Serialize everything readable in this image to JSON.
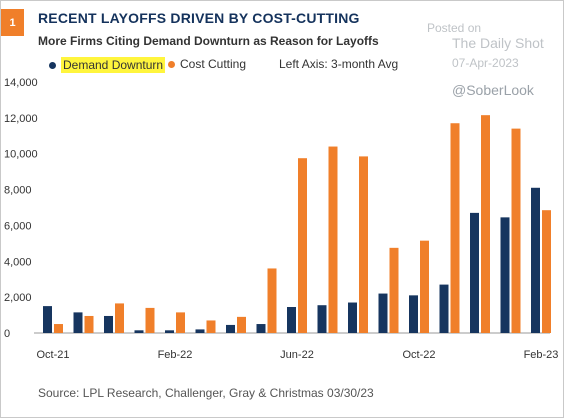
{
  "badge": "1",
  "title": "RECENT LAYOFFS DRIVEN BY COST-CUTTING",
  "subtitle": "More Firms Citing Demand Downturn as Reason for Layoffs",
  "legend_note": "Left Axis: 3-month Avg",
  "watermark": {
    "posted": "Posted on",
    "name": "The Daily Shot",
    "date": "07-Apr-2023",
    "handle": "@SoberLook"
  },
  "source": "Source: LPL Research, Challenger, Gray & Christmas  03/30/23",
  "colors": {
    "demand": "#16355f",
    "cost": "#f07f2a",
    "highlight": "#fff53d"
  },
  "chart_data": {
    "type": "bar",
    "title": "RECENT LAYOFFS DRIVEN BY COST-CUTTING",
    "subtitle": "More Firms Citing Demand Downturn as Reason for Layoffs",
    "categories": [
      "Oct-21",
      "Nov-21",
      "Dec-21",
      "Jan-22",
      "Feb-22",
      "Mar-22",
      "Apr-22",
      "May-22",
      "Jun-22",
      "Jul-22",
      "Aug-22",
      "Sep-22",
      "Oct-22",
      "Nov-22",
      "Dec-22",
      "Jan-23",
      "Feb-23"
    ],
    "x_tick_labels": [
      "Oct-21",
      "Feb-22",
      "Jun-22",
      "Oct-22",
      "Feb-23"
    ],
    "series": [
      {
        "name": "Demand Downturn",
        "values": [
          1500,
          1150,
          950,
          150,
          150,
          200,
          450,
          500,
          1450,
          1550,
          1700,
          2200,
          2100,
          2700,
          6700,
          6450,
          8100
        ]
      },
      {
        "name": "Cost Cutting",
        "values": [
          500,
          950,
          1650,
          1400,
          1150,
          700,
          900,
          3600,
          9750,
          10400,
          9850,
          4750,
          5150,
          11700,
          12150,
          11400,
          6850
        ]
      }
    ],
    "ylim": [
      0,
      14000
    ],
    "yticks": [
      0,
      2000,
      4000,
      6000,
      8000,
      10000,
      12000,
      14000
    ],
    "ylabel": "",
    "xlabel": "",
    "grid": false,
    "legend_position": "top-left"
  }
}
